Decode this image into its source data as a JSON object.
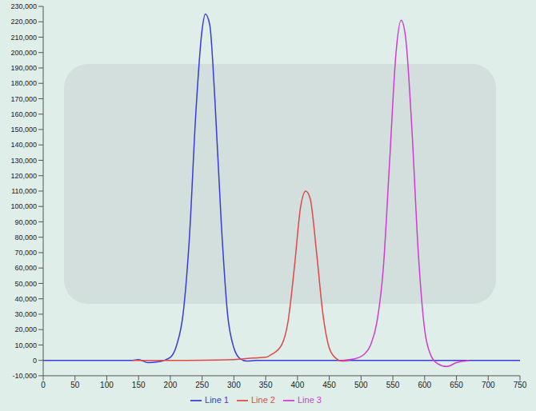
{
  "chart_data": {
    "type": "line",
    "legend": "bottom",
    "grid": false,
    "xlim": [
      0,
      750
    ],
    "xticks": [
      0,
      50,
      100,
      150,
      200,
      250,
      300,
      350,
      400,
      450,
      500,
      550,
      600,
      650,
      700,
      750
    ],
    "ylim": [
      -10000,
      230000
    ],
    "yticks": [
      {
        "value": -10000,
        "label": "-10,000"
      },
      0,
      {
        "value": 10000,
        "label": "10,000"
      },
      {
        "value": 20000,
        "label": "20,000"
      },
      {
        "value": 30000,
        "label": "30,000"
      },
      {
        "value": 40000,
        "label": "40,000"
      },
      {
        "value": 50000,
        "label": "50,000"
      },
      {
        "value": 60000,
        "label": "60,000"
      },
      {
        "value": 70000,
        "label": "70,000"
      },
      {
        "value": 80000,
        "label": "80,000"
      },
      {
        "value": 90000,
        "label": "90,000"
      },
      {
        "value": 100000,
        "label": "100,000"
      },
      {
        "value": 110000,
        "label": "110,000"
      },
      {
        "value": 120000,
        "label": "120,000"
      },
      {
        "value": 130000,
        "label": "130,000"
      },
      {
        "value": 140000,
        "label": "140,000"
      },
      {
        "value": 150000,
        "label": "150,000"
      },
      {
        "value": 160000,
        "label": "160,000"
      },
      {
        "value": 170000,
        "label": "170,000"
      },
      {
        "value": 180000,
        "label": "180,000"
      },
      {
        "value": 190000,
        "label": "190,000"
      },
      {
        "value": 200000,
        "label": "200,000"
      },
      {
        "value": 210000,
        "label": "210,000"
      },
      {
        "value": 220000,
        "label": "220,000"
      },
      {
        "value": 230000,
        "label": "230,000"
      }
    ],
    "series": [
      {
        "name": "Line 1",
        "color": "#3a3ad8",
        "x": [
          0,
          140,
          150,
          165,
          180,
          200,
          210,
          220,
          230,
          240,
          250,
          255,
          262,
          270,
          280,
          290,
          300,
          310,
          320,
          335,
          400,
          500,
          600,
          750
        ],
        "values": [
          0,
          0,
          500,
          -1500,
          -1000,
          2000,
          10000,
          30000,
          80000,
          160000,
          215000,
          225000,
          218000,
          170000,
          90000,
          30000,
          8000,
          1000,
          -500,
          0,
          0,
          0,
          0,
          0
        ]
      },
      {
        "name": "Line 2",
        "color": "#e04848",
        "x": [
          140,
          200,
          300,
          330,
          350,
          360,
          375,
          385,
          395,
          405,
          413,
          420,
          430,
          440,
          450,
          460,
          470,
          480
        ],
        "values": [
          0,
          0,
          500,
          1500,
          2000,
          4000,
          10000,
          25000,
          60000,
          100000,
          110000,
          105000,
          70000,
          30000,
          8000,
          1500,
          -500,
          0
        ]
      },
      {
        "name": "Line 3",
        "color": "#d03cd0",
        "x": [
          470,
          490,
          505,
          515,
          525,
          535,
          545,
          555,
          563,
          570,
          580,
          590,
          600,
          610,
          620,
          635,
          650,
          670
        ],
        "values": [
          0,
          1000,
          4000,
          10000,
          25000,
          60000,
          130000,
          200000,
          221000,
          210000,
          150000,
          70000,
          20000,
          3000,
          -2000,
          -4000,
          -1500,
          0
        ]
      }
    ]
  }
}
